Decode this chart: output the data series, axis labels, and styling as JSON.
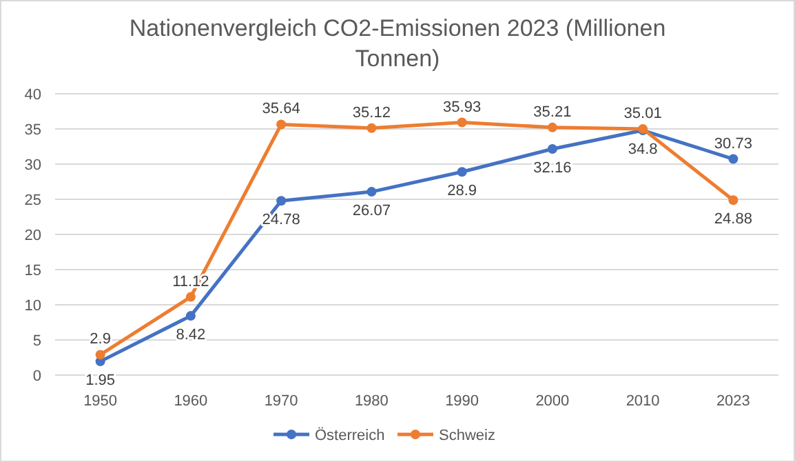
{
  "chart_data": {
    "type": "line",
    "title": "Nationenvergleich CO2-Emissionen 2023 (Millionen Tonnen)",
    "categories": [
      "1950",
      "1960",
      "1970",
      "1980",
      "1990",
      "2000",
      "2010",
      "2023"
    ],
    "series": [
      {
        "name": "Österreich",
        "color": "#4472c4",
        "values": [
          1.95,
          8.42,
          24.78,
          26.07,
          28.9,
          32.16,
          34.8,
          30.73
        ]
      },
      {
        "name": "Schweiz",
        "color": "#ed7d31",
        "values": [
          2.9,
          11.12,
          35.64,
          35.12,
          35.93,
          35.21,
          35.01,
          24.88
        ]
      }
    ],
    "ylim": [
      0,
      40
    ],
    "yticks": [
      0,
      5,
      10,
      15,
      20,
      25,
      30,
      35,
      40
    ],
    "grid": "y",
    "legend": "bottom",
    "marker": "circle",
    "line_style": "solid",
    "data_labels": true
  }
}
